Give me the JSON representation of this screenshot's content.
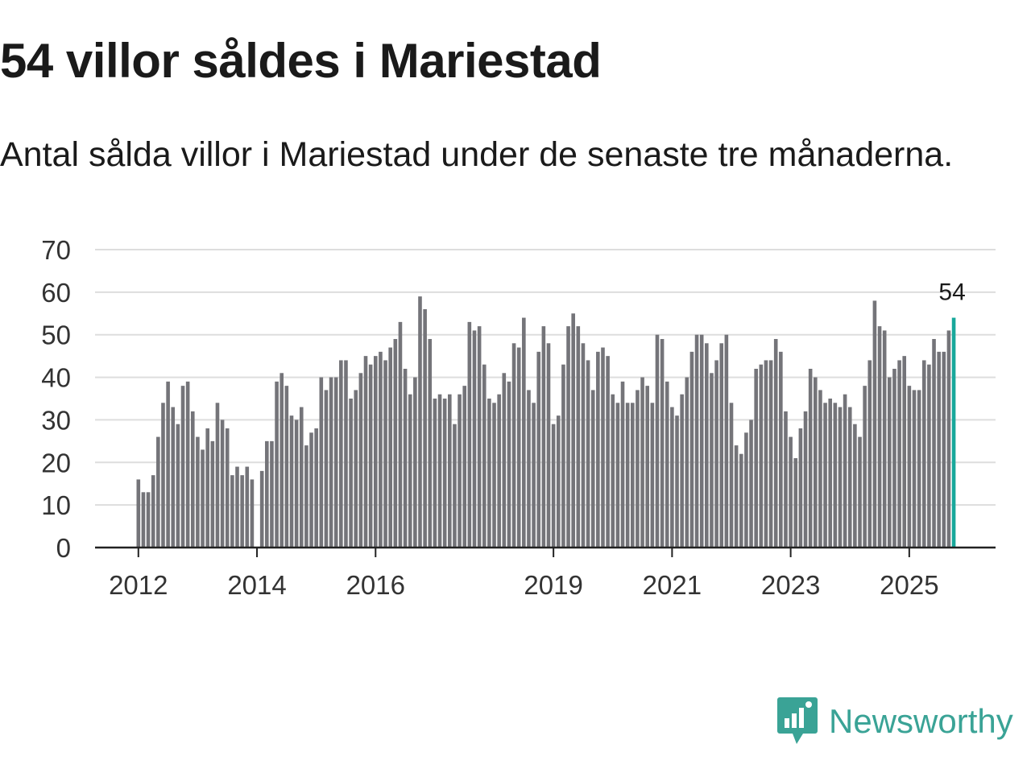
{
  "header": {
    "title": "54 villor såldes i Mariestad",
    "subtitle": "Antal sålda villor i Mariestad under de senaste tre månaderna."
  },
  "brand": {
    "name": "Newsworthy",
    "color": "#3aa396",
    "icon": "newsworthy-logo-icon"
  },
  "colors": {
    "bar": "#747479",
    "highlight": "#18a89b",
    "grid": "#dddddd",
    "axis": "#222222"
  },
  "chart_data": {
    "type": "bar",
    "title": "54 villor såldes i Mariestad",
    "subtitle": "Antal sålda villor i Mariestad under de senaste tre månaderna.",
    "xlabel": "",
    "ylabel": "",
    "ylim": [
      0,
      70
    ],
    "y_ticks": [
      "0",
      "10",
      "20",
      "30",
      "40",
      "50",
      "60",
      "70"
    ],
    "x_ticks": [
      {
        "label": "2012",
        "index": 0
      },
      {
        "label": "2014",
        "index": 24
      },
      {
        "label": "2016",
        "index": 48
      },
      {
        "label": "2019",
        "index": 84
      },
      {
        "label": "2021",
        "index": 108
      },
      {
        "label": "2023",
        "index": 132
      },
      {
        "label": "2025",
        "index": 156
      }
    ],
    "grid": true,
    "last_value_label": "54",
    "series": [
      {
        "name": "Antal sålda villor",
        "values": [
          16,
          13,
          13,
          17,
          26,
          34,
          39,
          33,
          29,
          38,
          39,
          32,
          26,
          23,
          28,
          25,
          34,
          30,
          28,
          17,
          19,
          17,
          19,
          16,
          null,
          18,
          25,
          25,
          39,
          41,
          38,
          31,
          30,
          33,
          24,
          27,
          28,
          40,
          37,
          40,
          40,
          44,
          44,
          35,
          37,
          41,
          45,
          43,
          45,
          46,
          44,
          47,
          49,
          53,
          42,
          36,
          40,
          59,
          56,
          49,
          35,
          36,
          35,
          36,
          29,
          36,
          38,
          53,
          51,
          52,
          43,
          35,
          34,
          36,
          41,
          39,
          48,
          47,
          54,
          37,
          34,
          46,
          52,
          48,
          29,
          31,
          43,
          52,
          55,
          52,
          48,
          44,
          37,
          46,
          47,
          45,
          36,
          34,
          39,
          34,
          34,
          37,
          40,
          38,
          34,
          50,
          49,
          39,
          33,
          31,
          36,
          40,
          46,
          50,
          50,
          48,
          41,
          44,
          48,
          50,
          34,
          24,
          22,
          27,
          30,
          42,
          43,
          44,
          44,
          49,
          46,
          32,
          26,
          21,
          28,
          32,
          42,
          40,
          37,
          34,
          35,
          34,
          33,
          36,
          33,
          29,
          26,
          38,
          44,
          58,
          52,
          51,
          40,
          42,
          44,
          45,
          38,
          37,
          37,
          44,
          43,
          49,
          46,
          46,
          51,
          54
        ]
      }
    ]
  }
}
